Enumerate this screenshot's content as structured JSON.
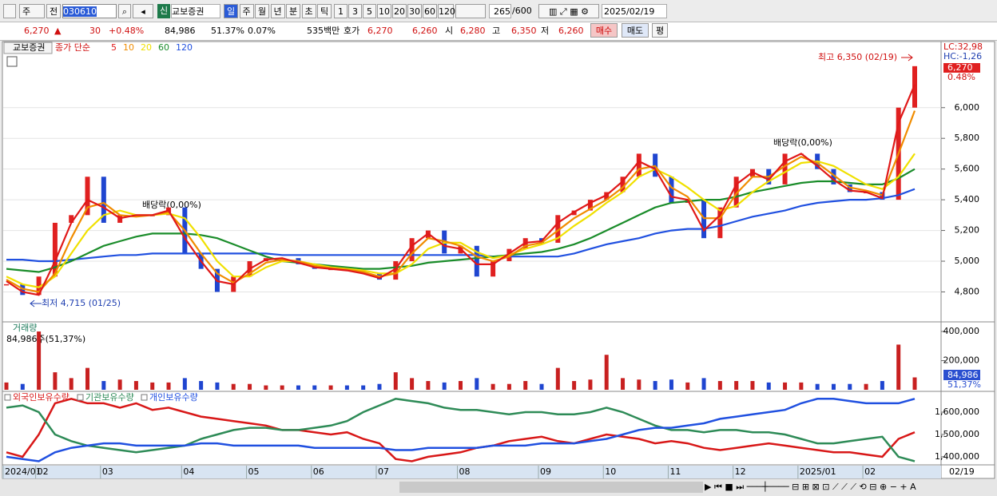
{
  "toolbar": {
    "interval": "주",
    "mode": "전",
    "code": "030610",
    "badge": "신",
    "name": "교보증권",
    "periods": [
      "일",
      "주",
      "월",
      "년",
      "분",
      "초",
      "틱"
    ],
    "minutes": [
      "1",
      "3",
      "5",
      "10",
      "20",
      "30",
      "60",
      "120"
    ],
    "count": "265",
    "max": "/600",
    "date": "2025/02/19"
  },
  "quote": {
    "price": "6,270",
    "arrow": "▲",
    "change": "30",
    "change_pct": "+0.48%",
    "volume": "84,986",
    "volume_ratio": "51.37%",
    "turnover": "0.07%",
    "amount": "535백만",
    "ask_label": "호가",
    "ask": "6,270",
    "bid": "6,260",
    "open_label": "시",
    "open": "6,280",
    "high_label": "고",
    "high": "6,350",
    "low_label": "저",
    "low": "6,260",
    "buy": "매수",
    "sell": "매도",
    "avg": "평"
  },
  "chart_data": [
    {
      "type": "candle",
      "title": "교보증권",
      "subtitle": "종가 단순",
      "up_color": "#e02020",
      "down_color": "#1f45d0",
      "grid": true,
      "ylim": [
        4610,
        6420
      ],
      "yticks": [
        {
          "value": 4800,
          "label": "4,800"
        },
        {
          "value": 5000,
          "label": "5,000"
        },
        {
          "value": 5200,
          "label": "5,200"
        },
        {
          "value": 5400,
          "label": "5,400"
        },
        {
          "value": 5600,
          "label": "5,600"
        },
        {
          "value": 5800,
          "label": "5,800"
        },
        {
          "value": 6000,
          "label": "6,000"
        }
      ],
      "candles": [
        4850,
        4780,
        4900,
        5250,
        5300,
        5550,
        5250,
        5300,
        5300,
        5300,
        5350,
        5050,
        4950,
        4800,
        4900,
        5000,
        5020,
        5020,
        4980,
        4950,
        4950,
        4940,
        4920,
        4880,
        5000,
        5150,
        5200,
        5050,
        5100,
        4900,
        5000,
        5080,
        5150,
        5120,
        5300,
        5330,
        5400,
        5450,
        5550,
        5700,
        5550,
        5380,
        5400,
        5150,
        5350,
        5550,
        5600,
        5500,
        5700,
        5700,
        5600,
        5500,
        5450,
        5450,
        5400,
        6000,
        6270
      ],
      "series": [
        {
          "name": "5",
          "color": "#e01818",
          "values": [
            4870,
            4800,
            4780,
            5000,
            5250,
            5400,
            5350,
            5280,
            5300,
            5300,
            5330,
            5150,
            5000,
            4870,
            4850,
            4950,
            5010,
            5020,
            4990,
            4960,
            4950,
            4940,
            4920,
            4890,
            4950,
            5100,
            5180,
            5100,
            5080,
            4980,
            4980,
            5050,
            5120,
            5130,
            5250,
            5320,
            5380,
            5430,
            5520,
            5650,
            5600,
            5420,
            5400,
            5200,
            5300,
            5500,
            5580,
            5530,
            5650,
            5700,
            5620,
            5530,
            5460,
            5450,
            5410,
            5900,
            6150
          ]
        },
        {
          "name": "10",
          "color": "#f08c00",
          "values": [
            4880,
            4820,
            4800,
            4920,
            5150,
            5350,
            5380,
            5300,
            5290,
            5300,
            5320,
            5200,
            5050,
            4920,
            4860,
            4920,
            4990,
            5010,
            5000,
            4970,
            4955,
            4945,
            4930,
            4900,
            4920,
            5050,
            5150,
            5130,
            5100,
            5030,
            5000,
            5030,
            5100,
            5120,
            5200,
            5280,
            5340,
            5400,
            5480,
            5600,
            5620,
            5480,
            5420,
            5280,
            5280,
            5440,
            5550,
            5550,
            5620,
            5680,
            5640,
            5560,
            5480,
            5460,
            5430,
            5700,
            5980
          ]
        },
        {
          "name": "20",
          "color": "#f0e000",
          "values": [
            4900,
            4850,
            4830,
            4900,
            5050,
            5200,
            5300,
            5330,
            5300,
            5300,
            5310,
            5280,
            5150,
            5000,
            4900,
            4900,
            4960,
            5000,
            5000,
            4980,
            4960,
            4950,
            4940,
            4920,
            4920,
            4980,
            5080,
            5120,
            5120,
            5060,
            5020,
            5040,
            5080,
            5110,
            5150,
            5230,
            5300,
            5380,
            5450,
            5550,
            5600,
            5550,
            5480,
            5400,
            5330,
            5360,
            5450,
            5520,
            5580,
            5640,
            5650,
            5620,
            5560,
            5500,
            5470,
            5550,
            5700
          ]
        },
        {
          "name": "60",
          "color": "#1a8c2a",
          "values": [
            4950,
            4940,
            4930,
            4960,
            5000,
            5050,
            5100,
            5130,
            5160,
            5180,
            5180,
            5180,
            5170,
            5150,
            5110,
            5070,
            5030,
            5000,
            4990,
            4980,
            4970,
            4960,
            4950,
            4950,
            4960,
            4970,
            4990,
            5000,
            5010,
            5020,
            5030,
            5040,
            5050,
            5060,
            5080,
            5110,
            5150,
            5200,
            5250,
            5300,
            5350,
            5380,
            5390,
            5400,
            5400,
            5420,
            5450,
            5470,
            5490,
            5510,
            5520,
            5520,
            5510,
            5500,
            5500,
            5540,
            5600
          ]
        },
        {
          "name": "120",
          "color": "#2050e0",
          "values": [
            5010,
            5010,
            5000,
            5000,
            5010,
            5020,
            5030,
            5040,
            5040,
            5050,
            5050,
            5050,
            5050,
            5050,
            5050,
            5050,
            5050,
            5040,
            5040,
            5040,
            5040,
            5040,
            5040,
            5040,
            5040,
            5040,
            5040,
            5040,
            5040,
            5040,
            5030,
            5030,
            5030,
            5030,
            5030,
            5050,
            5080,
            5110,
            5130,
            5150,
            5180,
            5200,
            5210,
            5210,
            5230,
            5260,
            5290,
            5310,
            5330,
            5360,
            5380,
            5390,
            5400,
            5400,
            5410,
            5430,
            5470
          ]
        }
      ],
      "annotations": [
        "최고 6,350 (02/19)",
        "최저 4,715 (01/25)",
        "배당락(0,00%)",
        "배당락(0,00%)"
      ],
      "axis_labels": [
        "LC:32,98",
        "HC:-1,26"
      ],
      "last_label": "6,270",
      "last_change": "0.48%"
    },
    {
      "type": "bar",
      "title": "거래량",
      "subtitle": "84,986주(51,37%)",
      "up_color": "#c82020",
      "down_color": "#1f45d0",
      "ylim": [
        0,
        455000
      ],
      "yticks": [
        {
          "value": 200000,
          "label": "200,000"
        },
        {
          "value": 400000,
          "label": "400,000"
        }
      ],
      "values": [
        50000,
        40000,
        400000,
        120000,
        80000,
        150000,
        60000,
        70000,
        60000,
        50000,
        50000,
        80000,
        60000,
        50000,
        40000,
        40000,
        30000,
        30000,
        30000,
        30000,
        30000,
        30000,
        30000,
        40000,
        120000,
        80000,
        60000,
        50000,
        60000,
        80000,
        40000,
        40000,
        60000,
        40000,
        150000,
        60000,
        70000,
        240000,
        80000,
        70000,
        60000,
        70000,
        50000,
        80000,
        60000,
        60000,
        60000,
        50000,
        50000,
        50000,
        40000,
        40000,
        40000,
        40000,
        60000,
        310000,
        84986
      ],
      "last_label": "84,986",
      "last_ratio": "51,37%"
    },
    {
      "type": "line",
      "ylim": [
        1371000,
        1686000
      ],
      "yticks": [
        {
          "value": 1400000,
          "label": "1,400,000"
        },
        {
          "value": 1500000,
          "label": "1,500,000"
        },
        {
          "value": 1600000,
          "label": "1,600,000"
        }
      ],
      "categories": [
        "2024/01",
        null,
        "02",
        null,
        null,
        null,
        "03",
        null,
        null,
        null,
        null,
        "04",
        null,
        null,
        null,
        "05",
        null,
        null,
        null,
        "06",
        null,
        null,
        null,
        "07",
        null,
        null,
        null,
        null,
        "08",
        null,
        null,
        null,
        null,
        "09",
        null,
        null,
        null,
        "10",
        null,
        null,
        null,
        "11",
        null,
        null,
        null,
        "12",
        null,
        null,
        null,
        "2025/01",
        null,
        null,
        null,
        "02",
        null,
        null,
        null
      ],
      "last_category": "02/19",
      "series": [
        {
          "name": "외국인보유수량",
          "color": "#d81818",
          "values": [
            1420000,
            1400000,
            1500000,
            1640000,
            1660000,
            1640000,
            1640000,
            1620000,
            1640000,
            1610000,
            1620000,
            1600000,
            1580000,
            1570000,
            1560000,
            1550000,
            1540000,
            1520000,
            1520000,
            1510000,
            1500000,
            1510000,
            1480000,
            1460000,
            1390000,
            1380000,
            1400000,
            1410000,
            1420000,
            1440000,
            1450000,
            1470000,
            1480000,
            1490000,
            1470000,
            1460000,
            1480000,
            1500000,
            1490000,
            1480000,
            1460000,
            1470000,
            1460000,
            1440000,
            1430000,
            1440000,
            1450000,
            1460000,
            1450000,
            1440000,
            1430000,
            1420000,
            1420000,
            1410000,
            1400000,
            1480000,
            1510000
          ]
        },
        {
          "name": "기관보유수량",
          "color": "#2e8b57",
          "values": [
            1620000,
            1630000,
            1600000,
            1500000,
            1470000,
            1450000,
            1440000,
            1430000,
            1420000,
            1430000,
            1440000,
            1450000,
            1480000,
            1500000,
            1520000,
            1530000,
            1530000,
            1520000,
            1520000,
            1530000,
            1540000,
            1560000,
            1600000,
            1630000,
            1660000,
            1650000,
            1640000,
            1620000,
            1610000,
            1610000,
            1600000,
            1590000,
            1600000,
            1600000,
            1590000,
            1590000,
            1600000,
            1620000,
            1600000,
            1570000,
            1540000,
            1520000,
            1520000,
            1510000,
            1520000,
            1520000,
            1510000,
            1510000,
            1500000,
            1480000,
            1460000,
            1460000,
            1470000,
            1480000,
            1490000,
            1400000,
            1380000
          ]
        },
        {
          "name": "개인보유수량",
          "color": "#2050e0",
          "values": [
            1400000,
            1390000,
            1380000,
            1420000,
            1440000,
            1450000,
            1460000,
            1460000,
            1450000,
            1450000,
            1450000,
            1450000,
            1460000,
            1460000,
            1450000,
            1450000,
            1450000,
            1450000,
            1450000,
            1440000,
            1440000,
            1440000,
            1440000,
            1440000,
            1430000,
            1430000,
            1440000,
            1440000,
            1440000,
            1440000,
            1450000,
            1450000,
            1450000,
            1460000,
            1460000,
            1460000,
            1470000,
            1480000,
            1500000,
            1520000,
            1530000,
            1530000,
            1540000,
            1550000,
            1570000,
            1580000,
            1590000,
            1600000,
            1610000,
            1640000,
            1660000,
            1660000,
            1650000,
            1640000,
            1640000,
            1640000,
            1660000
          ]
        }
      ]
    }
  ]
}
